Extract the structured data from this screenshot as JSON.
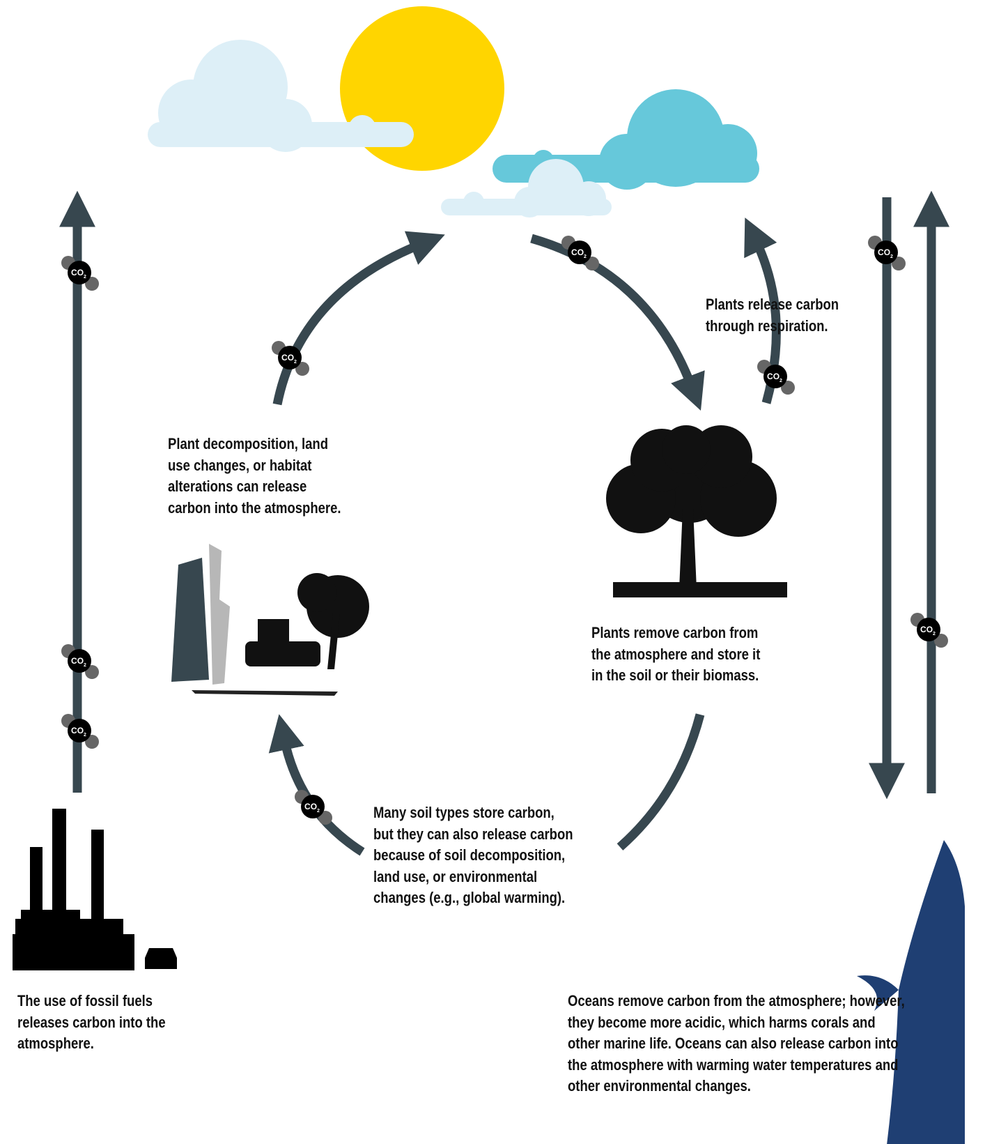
{
  "molecule": {
    "main": "CO",
    "sub": "2"
  },
  "respiration": {
    "lines": [
      "Plants release carbon",
      "through respiration."
    ]
  },
  "decomposition": {
    "lines": [
      "Plant decomposition, land",
      "use changes, or habitat",
      "alterations can release",
      "carbon into the atmosphere."
    ]
  },
  "plants_store": {
    "lines": [
      "Plants remove carbon from",
      "the atmosphere and store it",
      "in the soil or their biomass."
    ]
  },
  "soil": {
    "lines": [
      "Many soil types store carbon,",
      "but they can also release carbon",
      "because of soil decomposition,",
      "land use, or environmental",
      "changes (e.g., global warming)."
    ]
  },
  "fossil_fuels": {
    "lines": [
      "The use of fossil fuels",
      "releases carbon into the",
      "atmosphere."
    ]
  },
  "oceans": {
    "lines": [
      "Oceans remove carbon from the atmosphere; however,",
      "they become more acidic, which harms corals and",
      "other marine life. Oceans can also release carbon into",
      "the atmosphere with warming water temperatures and",
      "other environmental changes."
    ]
  }
}
